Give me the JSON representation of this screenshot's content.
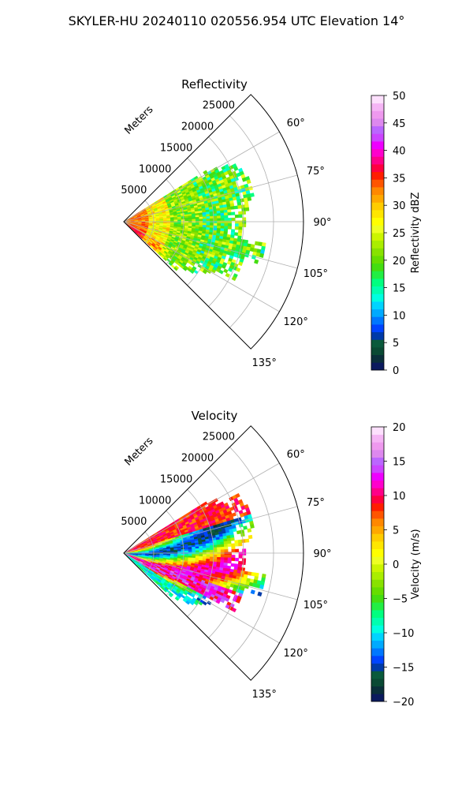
{
  "suptitle": "SKYLER-HU  20240110  020556.954 UTC Elevation 14°",
  "chart_data": [
    {
      "type": "heatmap",
      "projection": "polar sector",
      "title": "Reflectivity",
      "radial_label": "Meters",
      "radial_ticks": [
        5000,
        10000,
        15000,
        20000,
        25000
      ],
      "radial_range": [
        0,
        30000
      ],
      "radial_tick_labels": [
        "5000",
        "10000",
        "15000",
        "20000",
        "25000"
      ],
      "azimuth_ticks": [
        60,
        75,
        90,
        105,
        120,
        135
      ],
      "azimuth_tick_labels": [
        "60°",
        "75°",
        "90°",
        "105°",
        "120°",
        "135°"
      ],
      "azimuth_range": [
        45,
        135
      ],
      "grid": true,
      "colorbar": {
        "label": "Reflectivity dBZ",
        "range": [
          0,
          50
        ],
        "ticks": [
          0,
          5,
          10,
          15,
          20,
          25,
          30,
          35,
          40,
          45,
          50
        ],
        "tick_labels": [
          "0",
          "5",
          "10",
          "15",
          "20",
          "25",
          "30",
          "35",
          "40",
          "45",
          "50"
        ],
        "colors": [
          "#0b1a5e",
          "#0a2f3a",
          "#0a4a34",
          "#0a5a3c",
          "#003aa8",
          "#0044ff",
          "#0077ff",
          "#00aaff",
          "#00d4ff",
          "#00ffe0",
          "#00ffb0",
          "#00ff80",
          "#22ee44",
          "#44dd11",
          "#66dd00",
          "#88e200",
          "#aaee00",
          "#ccf500",
          "#eeff22",
          "#ffff00",
          "#ffe600",
          "#ffcc00",
          "#ffa800",
          "#ff8800",
          "#ff5500",
          "#ff1e00",
          "#ff0040",
          "#ff0088",
          "#ff00cc",
          "#ee00ff",
          "#cc44ff",
          "#bb66ff",
          "#dd88ee",
          "#ee99ee",
          "#f5b5f5",
          "#fde0fd"
        ]
      },
      "field_pattern": "reflectivity"
    },
    {
      "type": "heatmap",
      "projection": "polar sector",
      "title": "Velocity",
      "radial_label": "Meters",
      "radial_ticks": [
        5000,
        10000,
        15000,
        20000,
        25000
      ],
      "radial_range": [
        0,
        30000
      ],
      "radial_tick_labels": [
        "5000",
        "10000",
        "15000",
        "20000",
        "25000"
      ],
      "azimuth_ticks": [
        60,
        75,
        90,
        105,
        120,
        135
      ],
      "azimuth_tick_labels": [
        "60°",
        "75°",
        "90°",
        "105°",
        "120°",
        "135°"
      ],
      "azimuth_range": [
        45,
        135
      ],
      "grid": true,
      "colorbar": {
        "label": "Velocity (m/s)",
        "range": [
          -20,
          20
        ],
        "ticks": [
          -20,
          -15,
          -10,
          -5,
          0,
          5,
          10,
          15,
          20
        ],
        "tick_labels": [
          "−20",
          "−15",
          "−10",
          "−5",
          "0",
          "5",
          "10",
          "15",
          "20"
        ],
        "colors": [
          "#0b1a5e",
          "#0a2f3a",
          "#0a4a34",
          "#0a5a3c",
          "#003aa8",
          "#0044ff",
          "#0077ff",
          "#00aaff",
          "#00d4ff",
          "#00ffe0",
          "#00ffb0",
          "#00ff80",
          "#22ee44",
          "#44dd11",
          "#66dd00",
          "#88e200",
          "#aaee00",
          "#ccf500",
          "#eeff22",
          "#ffff00",
          "#ffe600",
          "#ffcc00",
          "#ffa800",
          "#ff8800",
          "#ff5500",
          "#ff1e00",
          "#ff0040",
          "#ff0088",
          "#ff00cc",
          "#ee00ff",
          "#cc44ff",
          "#bb66ff",
          "#dd88ee",
          "#ee99ee",
          "#f5b5f5",
          "#fde0fd"
        ]
      },
      "field_pattern": "velocity"
    }
  ]
}
